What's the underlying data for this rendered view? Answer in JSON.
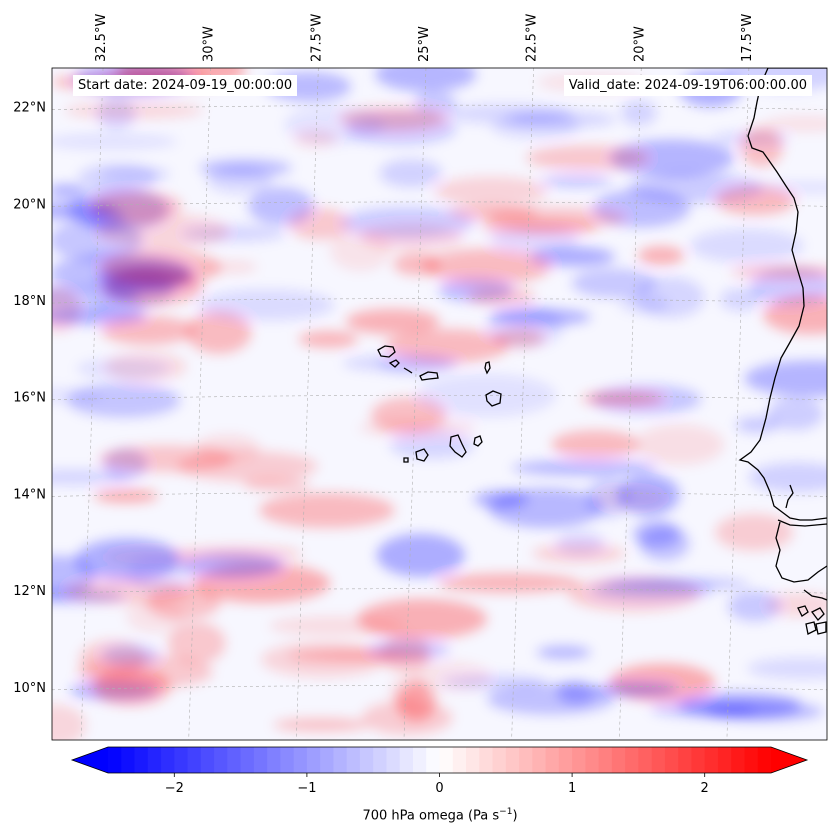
{
  "map": {
    "variable": "700 hPa omega (Pa s",
    "units_superscript": "−1",
    "units_close": ")",
    "start_date_label": "Start date: 2024-09-19_00:00:00",
    "valid_date_label": "Valid_date: 2024-09-19T06:00:00.00",
    "lon_ticks": [
      {
        "value": -32.5,
        "label": "32.5°W"
      },
      {
        "value": -30.0,
        "label": "30°W"
      },
      {
        "value": -27.5,
        "label": "27.5°W"
      },
      {
        "value": -25.0,
        "label": "25°W"
      },
      {
        "value": -22.5,
        "label": "22.5°W"
      },
      {
        "value": -20.0,
        "label": "20°W"
      },
      {
        "value": -17.5,
        "label": "17.5°W"
      }
    ],
    "lat_ticks": [
      {
        "value": 22,
        "label": "22°N"
      },
      {
        "value": 20,
        "label": "20°N"
      },
      {
        "value": 18,
        "label": "18°N"
      },
      {
        "value": 16,
        "label": "16°N"
      },
      {
        "value": 14,
        "label": "14°N"
      },
      {
        "value": 12,
        "label": "12°N"
      },
      {
        "value": 10,
        "label": "10°N"
      }
    ],
    "extent": {
      "lon_min": -33.5,
      "lon_max": -15.5,
      "lat_min": 8.9,
      "lat_max": 22.8
    },
    "colormap": "bwr",
    "colors": {
      "negative": "#0000ff",
      "zero": "#ffffff",
      "positive": "#ff0000",
      "coastline": "#000000",
      "gridline": "#b0b0b0"
    },
    "colorbar": {
      "min": -2.5,
      "max": 2.5,
      "extend": "both",
      "ticks": [
        {
          "value": -2,
          "label": "−2"
        },
        {
          "value": -1,
          "label": "−1"
        },
        {
          "value": 0,
          "label": "0"
        },
        {
          "value": 1,
          "label": "1"
        },
        {
          "value": 2,
          "label": "2"
        }
      ]
    },
    "features": [
      {
        "name": "west-african-coastline"
      },
      {
        "name": "cape-verde-islands"
      },
      {
        "name": "senegal-gambia-guinea-bissau-coast"
      }
    ]
  }
}
